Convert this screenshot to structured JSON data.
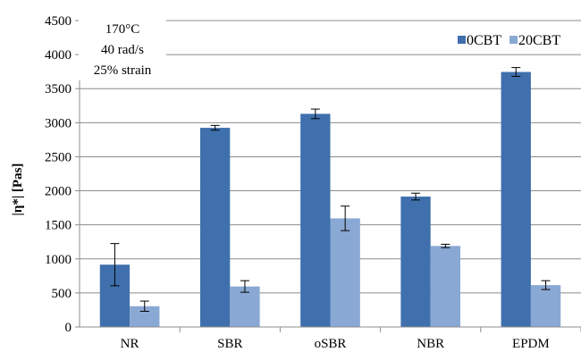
{
  "chart_data": {
    "type": "bar",
    "categories": [
      "NR",
      "SBR",
      "oSBR",
      "NBR",
      "EPDM"
    ],
    "series": [
      {
        "name": "0CBT",
        "color": "#3f70ad",
        "values": [
          915,
          2925,
          3130,
          1915,
          3745
        ],
        "errors": [
          310,
          35,
          70,
          50,
          65
        ]
      },
      {
        "name": "20CBT",
        "color": "#8aa8d4",
        "values": [
          305,
          595,
          1595,
          1190,
          615
        ],
        "errors": [
          75,
          85,
          180,
          25,
          65
        ]
      }
    ],
    "yticks": [
      "0",
      "500",
      "1000",
      "1500",
      "2000",
      "2500",
      "3000",
      "3500",
      "4000",
      "4500"
    ],
    "ylim": [
      0,
      4500
    ],
    "xlabel": "",
    "ylabel": "|η*| [Pas]",
    "title": "",
    "grid": true,
    "legend_position": "top-right",
    "conditions": [
      "170°C",
      "40 rad/s",
      "25% strain"
    ]
  }
}
